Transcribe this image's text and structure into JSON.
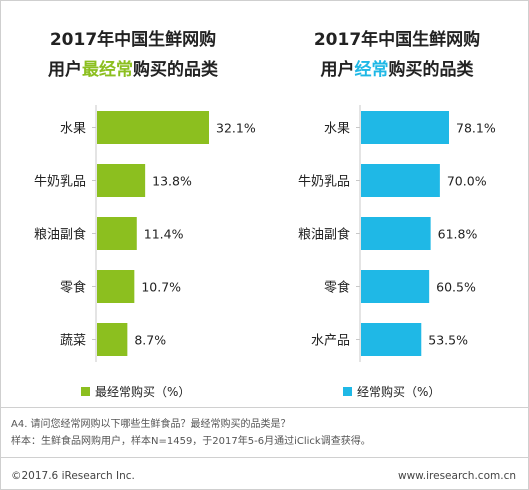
{
  "colors": {
    "green": "#8cbf1f",
    "blue": "#1fb8e6",
    "divider": "#d0d0d0"
  },
  "chart_data": [
    {
      "type": "bar",
      "orientation": "horizontal",
      "title_line1": "2017年中国生鲜网购",
      "title_line2_pre": "用户",
      "title_line2_hl": "最经常",
      "title_line2_post": "购买的品类",
      "categories": [
        "水果",
        "牛奶乳品",
        "粮油副食",
        "零食",
        "蔬菜"
      ],
      "values": [
        32.1,
        13.8,
        11.4,
        10.7,
        8.7
      ],
      "value_labels": [
        "32.1%",
        "13.8%",
        "11.4%",
        "10.7%",
        "8.7%"
      ],
      "series": [
        {
          "name": "最经常购买（%）",
          "values": [
            32.1,
            13.8,
            11.4,
            10.7,
            8.7
          ]
        }
      ],
      "xlim": [
        0,
        32.1
      ],
      "color": "#8cbf1f",
      "legend": "bottom"
    },
    {
      "type": "bar",
      "orientation": "horizontal",
      "title_line1": "2017年中国生鲜网购",
      "title_line2_pre": "用户",
      "title_line2_hl": "经常",
      "title_line2_post": "购买的品类",
      "categories": [
        "水果",
        "牛奶乳品",
        "粮油副食",
        "零食",
        "水产品"
      ],
      "values": [
        78.1,
        70.0,
        61.8,
        60.5,
        53.5
      ],
      "value_labels": [
        "78.1%",
        "70.0%",
        "61.8%",
        "60.5%",
        "53.5%"
      ],
      "series": [
        {
          "name": "经常购买（%）",
          "values": [
            78.1,
            70.0,
            61.8,
            60.5,
            53.5
          ]
        }
      ],
      "xlim": [
        0,
        78.1
      ],
      "color": "#1fb8e6",
      "legend": "bottom"
    }
  ],
  "notes": {
    "question": "A4. 请问您经常网购以下哪些生鲜食品？最经常购买的品类是？",
    "sample": "样本：生鲜食品网购用户，样本N=1459，于2017年5-6月通过iClick调查获得。"
  },
  "footer": {
    "copyright": "©2017.6 iResearch Inc.",
    "website": "www.iresearch.com.cn"
  }
}
